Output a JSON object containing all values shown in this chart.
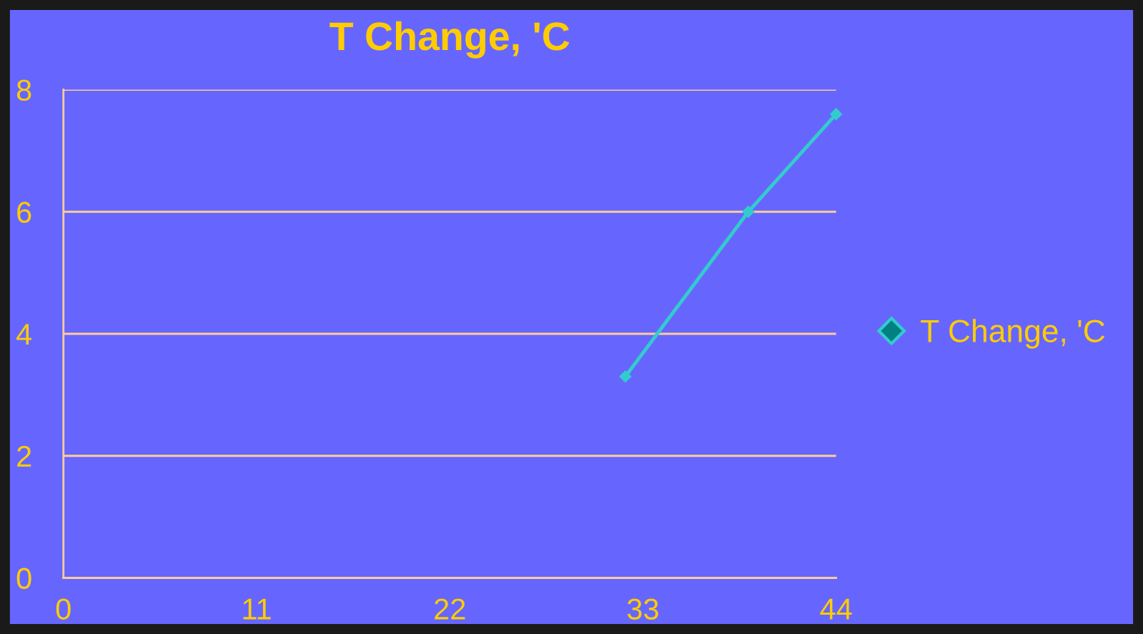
{
  "chart_data": {
    "type": "line",
    "title": "T Change, 'C",
    "x": [
      32,
      39,
      44
    ],
    "series": [
      {
        "name": "T Change, 'C",
        "color": "#33cccc",
        "values": [
          3.3,
          6.0,
          7.6
        ]
      }
    ],
    "xlim": [
      0,
      44
    ],
    "xticks": [
      0,
      11,
      22,
      33,
      44
    ],
    "ylim": [
      0,
      8
    ],
    "yticks": [
      0,
      2,
      4,
      6,
      8
    ],
    "grid": "y",
    "legend": "right",
    "marker": "diamond",
    "line_style": "solid"
  }
}
